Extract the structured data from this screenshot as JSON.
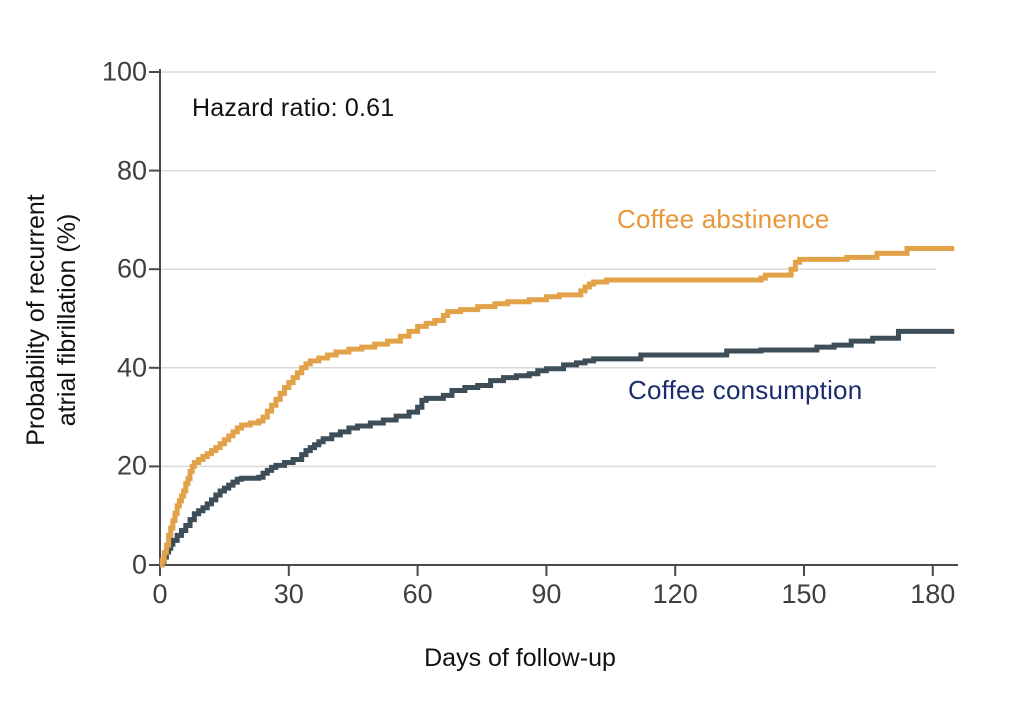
{
  "figure": {
    "annotation": "Hazard ratio: 0.61",
    "x_axis_title": "Days of follow-up",
    "y_axis_title": "Probability of recurrent\natrial fibrillation (%)"
  },
  "chart_data": {
    "type": "line",
    "subtype": "kaplan-meier-step",
    "title": "",
    "xlabel": "Days of follow-up",
    "ylabel": "Probability of recurrent atrial fibrillation (%)",
    "annotation": "Hazard ratio: 0.61",
    "xlim": [
      0,
      180
    ],
    "ylim": [
      0,
      100
    ],
    "x_ticks": [
      0,
      30,
      60,
      90,
      120,
      150,
      180
    ],
    "y_ticks": [
      0,
      20,
      40,
      60,
      80,
      100
    ],
    "grid": "horizontal",
    "legend_position": "labels-near-curves",
    "colors": {
      "axis": "#4a4a4a",
      "grid": "#d9d9d9",
      "tick_labels": "#3f3f3f",
      "abstinence_curve": "#E2A24A",
      "abstinence_label": "#E8973B",
      "consumption_curve": "#3D4E58",
      "consumption_label": "#1B2C6F"
    },
    "series": [
      {
        "name": "Coffee consumption",
        "color": "#3D4E58",
        "label_color": "#1B2C6F",
        "points": [
          [
            0,
            0
          ],
          [
            0.5,
            0.8
          ],
          [
            1,
            1.6
          ],
          [
            1.5,
            2.6
          ],
          [
            2,
            3.4
          ],
          [
            2.5,
            4.2
          ],
          [
            3,
            5
          ],
          [
            4,
            6
          ],
          [
            5,
            7
          ],
          [
            6,
            8
          ],
          [
            7,
            9.2
          ],
          [
            8,
            10.4
          ],
          [
            9,
            11
          ],
          [
            10,
            11.6
          ],
          [
            11,
            12.4
          ],
          [
            12,
            13.2
          ],
          [
            13,
            14.2
          ],
          [
            14,
            15
          ],
          [
            15,
            15.6
          ],
          [
            16,
            16.2
          ],
          [
            17,
            16.8
          ],
          [
            18,
            17.4
          ],
          [
            19,
            17.6
          ],
          [
            23,
            17.8
          ],
          [
            24,
            18.6
          ],
          [
            25,
            19.2
          ],
          [
            26,
            19.8
          ],
          [
            27,
            20.2
          ],
          [
            29,
            20.8
          ],
          [
            31,
            21.4
          ],
          [
            33,
            22.4
          ],
          [
            34,
            23.2
          ],
          [
            35,
            23.8
          ],
          [
            36,
            24.4
          ],
          [
            37,
            25
          ],
          [
            38,
            25.6
          ],
          [
            40,
            26.4
          ],
          [
            42,
            27
          ],
          [
            44,
            27.8
          ],
          [
            46,
            28.2
          ],
          [
            49,
            28.8
          ],
          [
            52,
            29.4
          ],
          [
            55,
            30.2
          ],
          [
            58,
            31
          ],
          [
            60,
            32
          ],
          [
            61,
            33.4
          ],
          [
            62,
            33.8
          ],
          [
            66,
            34.4
          ],
          [
            68,
            35.4
          ],
          [
            71,
            36
          ],
          [
            74,
            36.4
          ],
          [
            77,
            37.4
          ],
          [
            80,
            38
          ],
          [
            83,
            38.4
          ],
          [
            86,
            38.8
          ],
          [
            88,
            39.4
          ],
          [
            90,
            39.8
          ],
          [
            94,
            40.6
          ],
          [
            97,
            41
          ],
          [
            99,
            41.4
          ],
          [
            101,
            41.8
          ],
          [
            112,
            42.6
          ],
          [
            132,
            43.4
          ],
          [
            140,
            43.6
          ],
          [
            153,
            44.2
          ],
          [
            157,
            44.6
          ],
          [
            161,
            45.4
          ],
          [
            166,
            46
          ],
          [
            172,
            47.4
          ],
          [
            185,
            47.4
          ]
        ]
      },
      {
        "name": "Coffee abstinence",
        "color": "#E2A24A",
        "label_color": "#E8973B",
        "points": [
          [
            0,
            0
          ],
          [
            0.5,
            1
          ],
          [
            1,
            2.5
          ],
          [
            1.5,
            4
          ],
          [
            2,
            6
          ],
          [
            2.5,
            7.5
          ],
          [
            3,
            9
          ],
          [
            3.5,
            10.5
          ],
          [
            4,
            12
          ],
          [
            4.5,
            13
          ],
          [
            5,
            14
          ],
          [
            5.5,
            15
          ],
          [
            6,
            16.5
          ],
          [
            6.5,
            17.5
          ],
          [
            7,
            19
          ],
          [
            7.5,
            20
          ],
          [
            8,
            20.8
          ],
          [
            9,
            21.4
          ],
          [
            10,
            22
          ],
          [
            11,
            22.6
          ],
          [
            12,
            23.2
          ],
          [
            13,
            23.8
          ],
          [
            14,
            24.6
          ],
          [
            15,
            25.4
          ],
          [
            16,
            26.2
          ],
          [
            17,
            27
          ],
          [
            18,
            27.8
          ],
          [
            19,
            28.4
          ],
          [
            21,
            28.8
          ],
          [
            23,
            29.2
          ],
          [
            24,
            30
          ],
          [
            25,
            31.2
          ],
          [
            26,
            32.4
          ],
          [
            27,
            33.6
          ],
          [
            28,
            34.8
          ],
          [
            29,
            36
          ],
          [
            30,
            37
          ],
          [
            31,
            38
          ],
          [
            32,
            39
          ],
          [
            33,
            40
          ],
          [
            34,
            40.8
          ],
          [
            35,
            41.4
          ],
          [
            37,
            42
          ],
          [
            39,
            42.6
          ],
          [
            41,
            43.2
          ],
          [
            44,
            43.8
          ],
          [
            47,
            44.2
          ],
          [
            50,
            44.8
          ],
          [
            53,
            45.4
          ],
          [
            56,
            46.4
          ],
          [
            58,
            47.4
          ],
          [
            60,
            48.4
          ],
          [
            62,
            49
          ],
          [
            64,
            49.6
          ],
          [
            66,
            50.6
          ],
          [
            67,
            51.4
          ],
          [
            70,
            51.8
          ],
          [
            74,
            52.4
          ],
          [
            78,
            53
          ],
          [
            81,
            53.4
          ],
          [
            86,
            53.8
          ],
          [
            90,
            54.4
          ],
          [
            93,
            54.8
          ],
          [
            98,
            55.6
          ],
          [
            99,
            56.4
          ],
          [
            100,
            57
          ],
          [
            101,
            57.4
          ],
          [
            104,
            57.8
          ],
          [
            140,
            58.2
          ],
          [
            141,
            58.8
          ],
          [
            147,
            60
          ],
          [
            148,
            61.4
          ],
          [
            149,
            62
          ],
          [
            160,
            62.4
          ],
          [
            167,
            63.2
          ],
          [
            174,
            64.2
          ],
          [
            185,
            64.2
          ]
        ]
      }
    ]
  }
}
